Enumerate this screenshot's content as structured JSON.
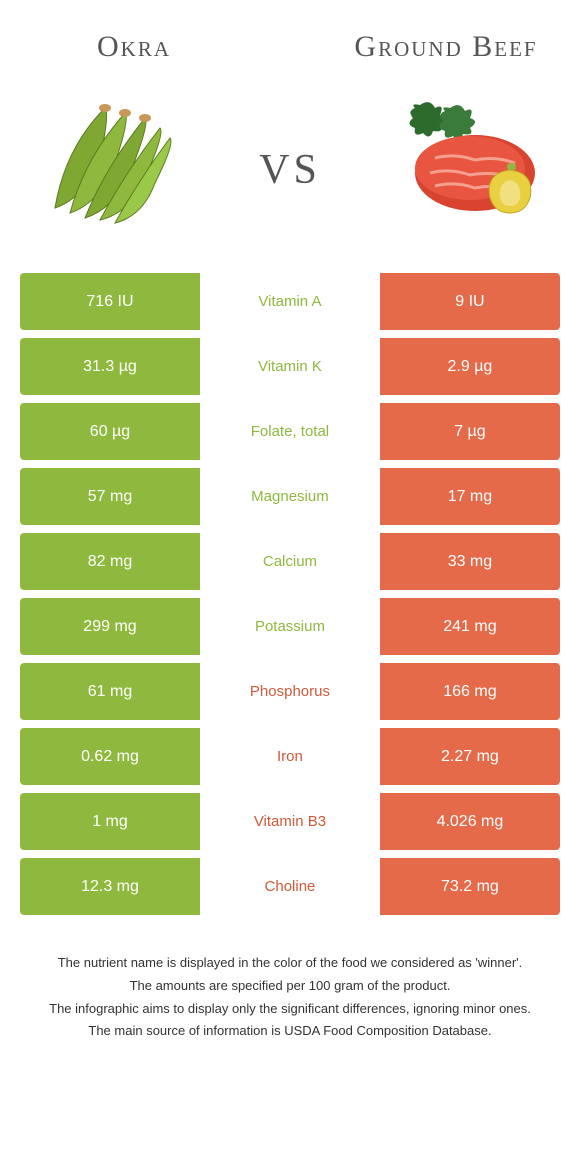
{
  "colors": {
    "left": "#8fb93e",
    "right": "#e46a4a",
    "text_left": "#8fb93e",
    "text_right": "#d05a3c",
    "title": "#555555"
  },
  "header": {
    "left_title": "Okra",
    "right_title": "Ground Beef",
    "vs": "vs"
  },
  "rows": [
    {
      "left": "716 IU",
      "label": "Vitamin A",
      "right": "9 IU",
      "winner": "left"
    },
    {
      "left": "31.3 µg",
      "label": "Vitamin K",
      "right": "2.9 µg",
      "winner": "left"
    },
    {
      "left": "60 µg",
      "label": "Folate, total",
      "right": "7 µg",
      "winner": "left"
    },
    {
      "left": "57 mg",
      "label": "Magnesium",
      "right": "17 mg",
      "winner": "left"
    },
    {
      "left": "82 mg",
      "label": "Calcium",
      "right": "33 mg",
      "winner": "left"
    },
    {
      "left": "299 mg",
      "label": "Potassium",
      "right": "241 mg",
      "winner": "left"
    },
    {
      "left": "61 mg",
      "label": "Phosphorus",
      "right": "166 mg",
      "winner": "right"
    },
    {
      "left": "0.62 mg",
      "label": "Iron",
      "right": "2.27 mg",
      "winner": "right"
    },
    {
      "left": "1 mg",
      "label": "Vitamin B3",
      "right": "4.026 mg",
      "winner": "right"
    },
    {
      "left": "12.3 mg",
      "label": "Choline",
      "right": "73.2 mg",
      "winner": "right"
    }
  ],
  "footer": [
    "The nutrient name is displayed in the color of the food we considered as 'winner'.",
    "The amounts are specified per 100 gram of the product.",
    "The infographic aims to display only the significant differences, ignoring minor ones.",
    "The main source of information is USDA Food Composition Database."
  ]
}
